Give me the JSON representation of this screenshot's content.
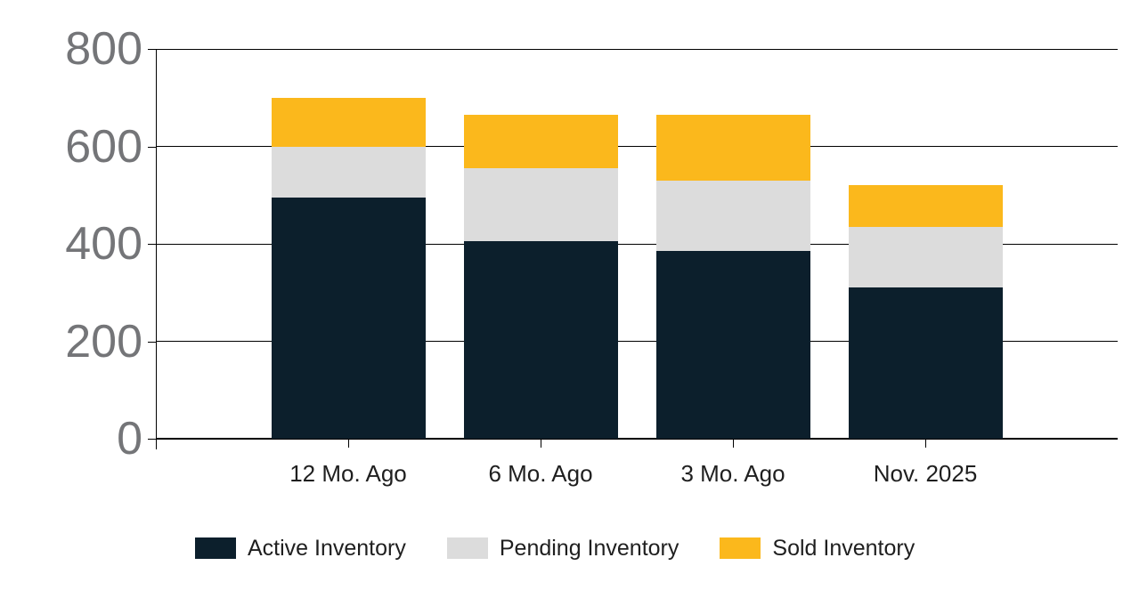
{
  "chart_data": {
    "type": "bar",
    "stacked": true,
    "stack_order": "bottom-to-top",
    "title": "",
    "xlabel": "",
    "ylabel": "",
    "categories": [
      "12 Mo. Ago",
      "6 Mo. Ago",
      "3 Mo. Ago",
      "Nov. 2025"
    ],
    "series": [
      {
        "name": "Active Inventory",
        "color": "#0C1F2C",
        "values": [
          495,
          405,
          385,
          310
        ]
      },
      {
        "name": "Pending Inventory",
        "color": "#DCDCDC",
        "values": [
          105,
          150,
          145,
          125
        ]
      },
      {
        "name": "Sold Inventory",
        "color": "#FBB81C",
        "values": [
          100,
          110,
          135,
          85
        ]
      }
    ],
    "stack_totals": [
      700,
      665,
      665,
      520
    ],
    "ylim": [
      0,
      800
    ],
    "yticks": [
      0,
      200,
      400,
      600,
      800
    ],
    "grid": true,
    "gridline_color": "#000000",
    "legend_position": "bottom-left",
    "legend": [
      "Active Inventory",
      "Pending Inventory",
      "Sold Inventory"
    ]
  },
  "colors": {
    "background": "#FFFFFF",
    "active_inventory": "#0C1F2C",
    "pending_inventory": "#DCDCDC",
    "sold_inventory": "#FBB81C",
    "y_tick_text": "#747578",
    "x_tick_text": "#1F1F1F",
    "axis_line": "#000000"
  }
}
